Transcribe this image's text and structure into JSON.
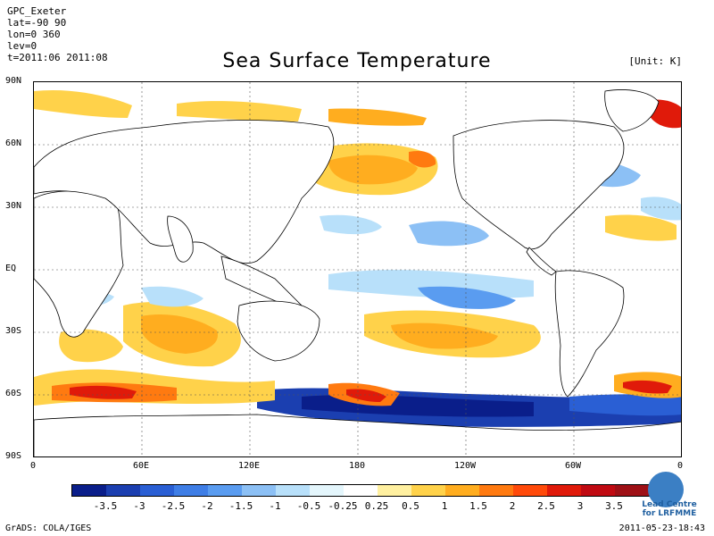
{
  "header": {
    "meta_lines": [
      "GPC_Exeter",
      "lat=-90 90",
      "lon=0 360",
      "lev=0",
      "t=2011:06 2011:08"
    ],
    "title": "Sea Surface Temperature",
    "unit": "[Unit: K]"
  },
  "axes": {
    "y_labels": [
      "90N",
      "60N",
      "30N",
      "EQ",
      "30S",
      "60S",
      "90S"
    ],
    "x_labels": [
      "0",
      "60E",
      "120E",
      "180",
      "120W",
      "60W",
      "0"
    ]
  },
  "colorbar": {
    "labels": [
      "-3.5",
      "-3",
      "-2.5",
      "-2",
      "-1.5",
      "-1",
      "-0.5",
      "-0.25",
      "0.25",
      "0.5",
      "1",
      "1.5",
      "2",
      "2.5",
      "3",
      "3.5"
    ],
    "colors": [
      "#0a1e8a",
      "#1b3fb0",
      "#2a5fd4",
      "#3f7ee6",
      "#5a9cf0",
      "#8cc0f5",
      "#b8e0fa",
      "#e4f6fc",
      "#ffffff",
      "#fff0a0",
      "#ffd24a",
      "#ffad1f",
      "#ff7a10",
      "#ff4a0a",
      "#e01a0a",
      "#c00a12",
      "#9e1016"
    ]
  },
  "footer": {
    "left": "GrADS: COLA/IGES",
    "right": "2011-05-23-18:43",
    "logo_text": "Lead Centre for LRFMME"
  }
}
